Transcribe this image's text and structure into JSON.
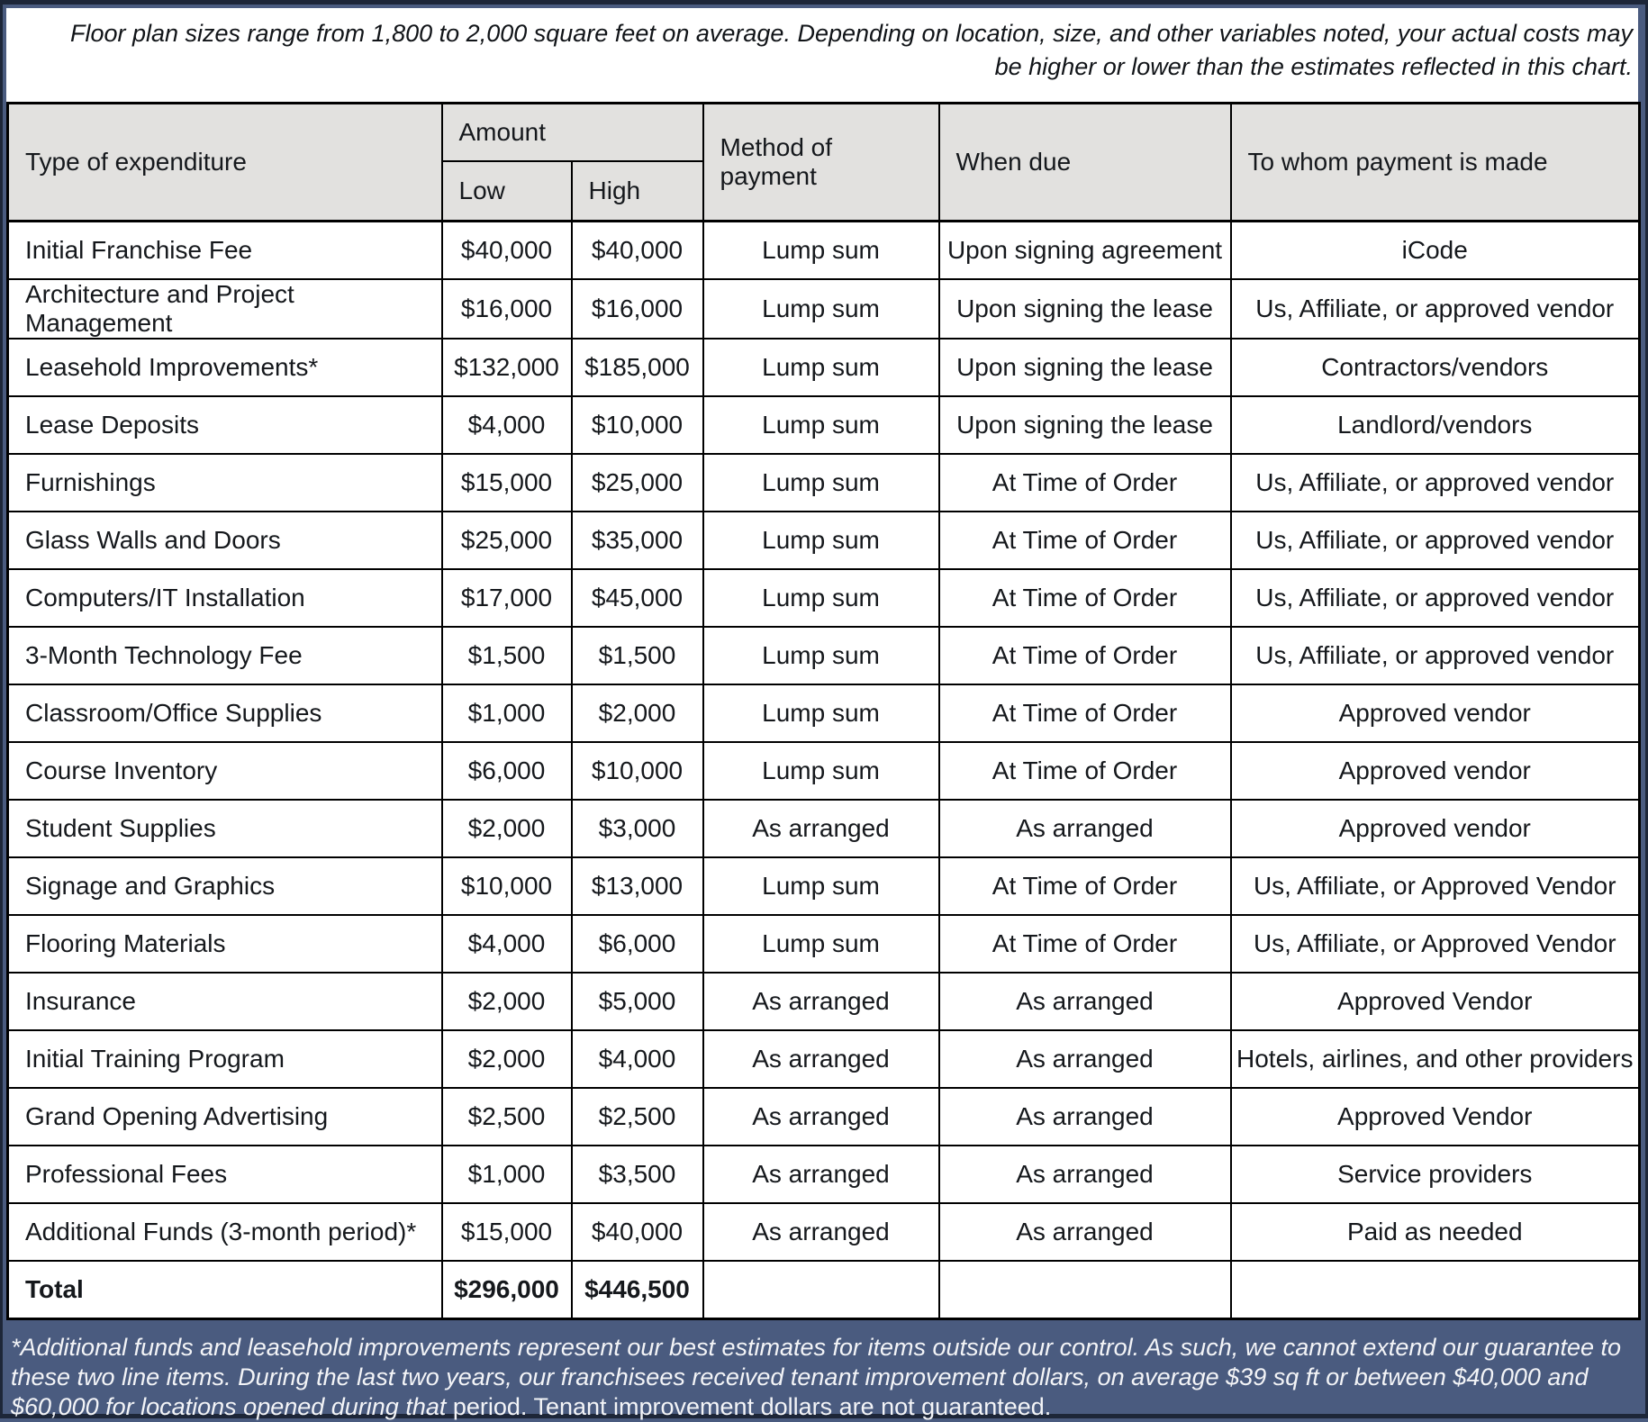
{
  "disclaimer": "Floor plan sizes range from 1,800 to 2,000 square feet on average. Depending on location, size, and other variables noted, your actual costs may be higher or lower than the estimates reflected in this chart.",
  "table": {
    "headers": {
      "type": "Type of expenditure",
      "amount": "Amount",
      "low": "Low",
      "high": "High",
      "method": "Method of payment",
      "when_due": "When due",
      "to_whom": "To whom payment is made"
    },
    "rows": [
      {
        "type": "Initial Franchise Fee",
        "low": "$40,000",
        "high": "$40,000",
        "method": "Lump sum",
        "when_due": "Upon signing agreement",
        "to_whom": "iCode"
      },
      {
        "type": "Architecture and Project Management",
        "low": "$16,000",
        "high": "$16,000",
        "method": "Lump sum",
        "when_due": "Upon signing the lease",
        "to_whom": "Us, Affiliate, or approved vendor"
      },
      {
        "type": "Leasehold Improvements*",
        "low": "$132,000",
        "high": "$185,000",
        "method": "Lump sum",
        "when_due": "Upon signing the lease",
        "to_whom": "Contractors/vendors"
      },
      {
        "type": "Lease Deposits",
        "low": "$4,000",
        "high": "$10,000",
        "method": "Lump sum",
        "when_due": "Upon signing the lease",
        "to_whom": "Landlord/vendors"
      },
      {
        "type": "Furnishings",
        "low": "$15,000",
        "high": "$25,000",
        "method": "Lump sum",
        "when_due": "At Time of Order",
        "to_whom": "Us, Affiliate, or approved vendor"
      },
      {
        "type": "Glass Walls and Doors",
        "low": "$25,000",
        "high": "$35,000",
        "method": "Lump sum",
        "when_due": "At Time of Order",
        "to_whom": "Us, Affiliate, or approved vendor"
      },
      {
        "type": "Computers/IT Installation",
        "low": "$17,000",
        "high": "$45,000",
        "method": "Lump sum",
        "when_due": "At Time of Order",
        "to_whom": "Us, Affiliate, or approved vendor"
      },
      {
        "type": "3-Month Technology Fee",
        "low": "$1,500",
        "high": "$1,500",
        "method": "Lump sum",
        "when_due": "At Time of Order",
        "to_whom": "Us, Affiliate, or approved vendor"
      },
      {
        "type": "Classroom/Office Supplies",
        "low": "$1,000",
        "high": "$2,000",
        "method": "Lump sum",
        "when_due": "At Time of Order",
        "to_whom": "Approved vendor"
      },
      {
        "type": "Course Inventory",
        "low": "$6,000",
        "high": "$10,000",
        "method": "Lump sum",
        "when_due": "At Time of Order",
        "to_whom": "Approved vendor"
      },
      {
        "type": "Student Supplies",
        "low": "$2,000",
        "high": "$3,000",
        "method": "As arranged",
        "when_due": "As arranged",
        "to_whom": "Approved vendor"
      },
      {
        "type": "Signage and Graphics",
        "low": "$10,000",
        "high": "$13,000",
        "method": "Lump sum",
        "when_due": "At Time of Order",
        "to_whom": "Us, Affiliate, or Approved Vendor"
      },
      {
        "type": "Flooring Materials",
        "low": "$4,000",
        "high": "$6,000",
        "method": "Lump sum",
        "when_due": "At Time of Order",
        "to_whom": "Us, Affiliate, or Approved Vendor"
      },
      {
        "type": "Insurance",
        "low": "$2,000",
        "high": "$5,000",
        "method": "As arranged",
        "when_due": "As arranged",
        "to_whom": "Approved Vendor"
      },
      {
        "type": "Initial Training Program",
        "low": "$2,000",
        "high": "$4,000",
        "method": "As arranged",
        "when_due": "As arranged",
        "to_whom": "Hotels, airlines, and other providers"
      },
      {
        "type": "Grand Opening Advertising",
        "low": "$2,500",
        "high": "$2,500",
        "method": "As arranged",
        "when_due": "As arranged",
        "to_whom": "Approved Vendor"
      },
      {
        "type": "Professional Fees",
        "low": "$1,000",
        "high": "$3,500",
        "method": "As arranged",
        "when_due": "As arranged",
        "to_whom": "Service providers"
      },
      {
        "type": "Additional Funds (3-month period)*",
        "low": "$15,000",
        "high": "$40,000",
        "method": "As arranged",
        "when_due": "As arranged",
        "to_whom": "Paid as needed"
      }
    ],
    "total_row": {
      "type": "Total",
      "low": "$296,000",
      "high": "$446,500",
      "method": "",
      "when_due": "",
      "to_whom": ""
    }
  },
  "footnote": {
    "italic_part": "*Additional funds and leasehold improvements represent our best estimates for items outside our control. As such, we cannot extend our guarantee to these two line items. During the last two years, our franchisees received tenant improvement dollars, on average $39 sq ft or between $40,000 and $60,000 for locations opened during that ",
    "regular_part": "period. Tenant improvement dollars are not guaranteed."
  },
  "colors": {
    "page_background": "#4a5b7f",
    "frame_border": "#1d2638",
    "header_background": "#e2e1df",
    "table_border": "#000000",
    "body_text": "#15181c",
    "footnote_text": "#f3f4f7"
  }
}
